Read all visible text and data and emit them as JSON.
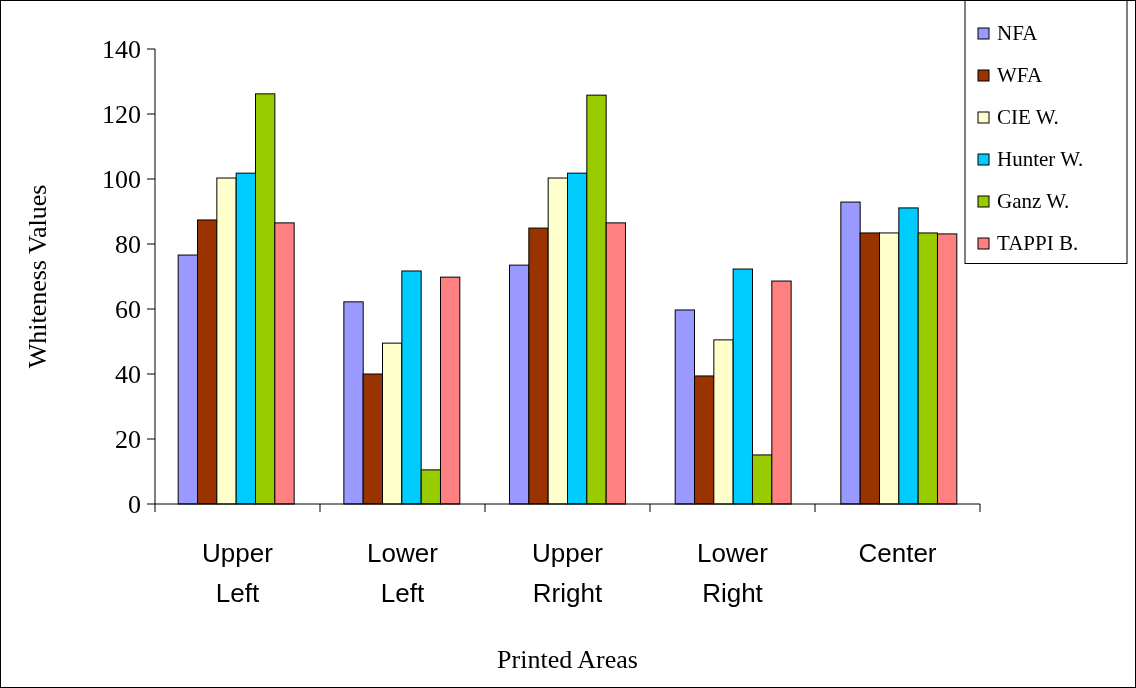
{
  "chart_data": {
    "type": "bar",
    "xlabel": "Printed Areas",
    "ylabel": "Whiteness Values",
    "categories": [
      "Upper Left",
      "Lower Left",
      "Upper Rright",
      "Lower Right",
      "Center"
    ],
    "series": [
      {
        "name": "NFA",
        "color": "#9999ff",
        "values": [
          76.6,
          62.2,
          73.5,
          59.7,
          92.9
        ]
      },
      {
        "name": "WFA",
        "color": "#993300",
        "values": [
          87.4,
          40,
          84.9,
          39.4,
          83.4
        ]
      },
      {
        "name": "CIE W.",
        "color": "#ffffcc",
        "values": [
          100.3,
          49.5,
          100.3,
          50.5,
          83.4
        ]
      },
      {
        "name": "Hunter W.",
        "color": "#00ccff",
        "values": [
          101.8,
          71.7,
          101.8,
          72.3,
          91.1
        ]
      },
      {
        "name": "Ganz W.",
        "color": "#99cc00",
        "values": [
          126.2,
          10.5,
          125.8,
          15.1,
          83.4
        ]
      },
      {
        "name": "TAPPI B.",
        "color": "#ff8080",
        "values": [
          86.5,
          69.8,
          86.5,
          68.6,
          83.1
        ]
      }
    ],
    "ylim": [
      0,
      140
    ],
    "yticks": [
      0,
      20,
      40,
      60,
      80,
      100,
      120,
      140
    ],
    "grid": false,
    "legend": "top right"
  }
}
